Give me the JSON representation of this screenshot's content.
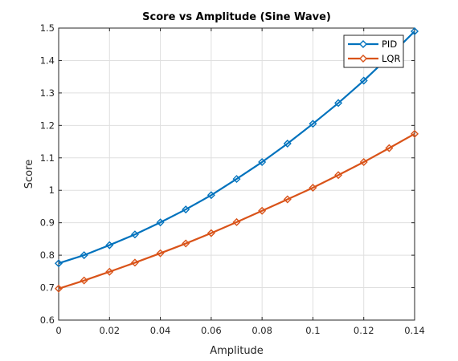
{
  "chart_data": {
    "type": "line",
    "title": "Score vs Amplitude (Sine Wave)",
    "xlabel": "Amplitude",
    "ylabel": "Score",
    "xlim": [
      0,
      0.14
    ],
    "ylim": [
      0.6,
      1.5
    ],
    "xticks": [
      "0",
      "0.02",
      "0.04",
      "0.06",
      "0.08",
      "0.1",
      "0.12",
      "0.14"
    ],
    "yticks": [
      "0.6",
      "0.7",
      "0.8",
      "0.9",
      "1",
      "1.1",
      "1.2",
      "1.3",
      "1.4",
      "1.5"
    ],
    "grid": true,
    "legend_position": "top-right",
    "x": [
      0,
      0.01,
      0.02,
      0.03,
      0.04,
      0.05,
      0.06,
      0.07,
      0.08,
      0.09,
      0.1,
      0.11,
      0.12,
      0.13,
      0.14
    ],
    "series": [
      {
        "name": "PID",
        "color": "#0072BD",
        "marker": "diamond",
        "values": [
          0.775,
          0.8,
          0.831,
          0.864,
          0.901,
          0.941,
          0.985,
          1.035,
          1.087,
          1.144,
          1.205,
          1.269,
          1.338,
          1.412,
          1.49
        ]
      },
      {
        "name": "LQR",
        "color": "#D95319",
        "marker": "diamond",
        "values": [
          0.697,
          0.722,
          0.749,
          0.777,
          0.806,
          0.836,
          0.868,
          0.902,
          0.937,
          0.972,
          1.008,
          1.047,
          1.087,
          1.13,
          1.174
        ]
      }
    ]
  }
}
